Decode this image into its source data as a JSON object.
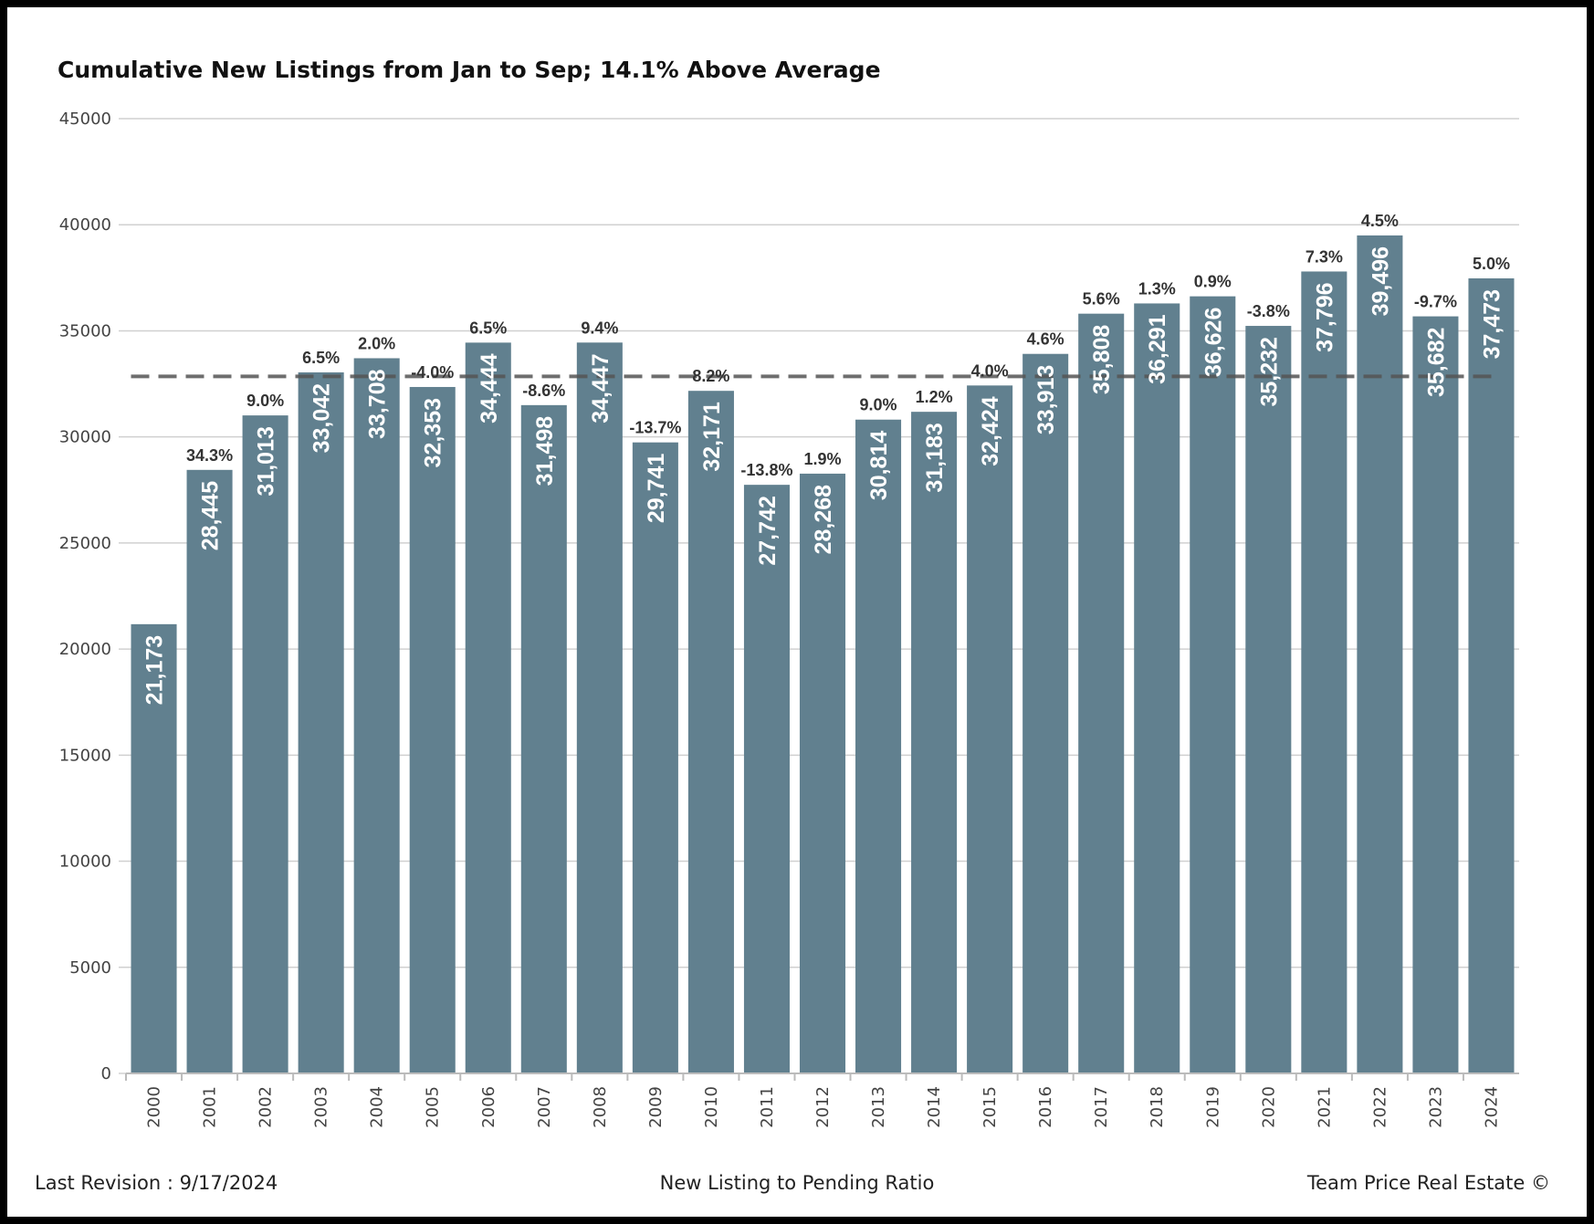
{
  "chart_data": {
    "type": "bar",
    "title": "Cumulative New Listings from Jan to Sep; 14.1% Above Average",
    "xlabel": "",
    "ylabel": "",
    "ylim": [
      0,
      45000
    ],
    "yticks": [
      0,
      5000,
      10000,
      15000,
      20000,
      25000,
      30000,
      35000,
      40000,
      45000
    ],
    "grid": true,
    "categories": [
      "2000",
      "2001",
      "2002",
      "2003",
      "2004",
      "2005",
      "2006",
      "2007",
      "2008",
      "2009",
      "2010",
      "2011",
      "2012",
      "2013",
      "2014",
      "2015",
      "2016",
      "2017",
      "2018",
      "2019",
      "2020",
      "2021",
      "2022",
      "2023",
      "2024"
    ],
    "values": [
      21173,
      28445,
      31013,
      33042,
      33708,
      32353,
      34444,
      31498,
      34447,
      29741,
      32171,
      27742,
      28268,
      30814,
      31183,
      32424,
      33913,
      35808,
      36291,
      36626,
      35232,
      37796,
      39496,
      35682,
      37473
    ],
    "value_labels": [
      "21,173",
      "28,445",
      "31,013",
      "33,042",
      "33,708",
      "32,353",
      "34,444",
      "31,498",
      "34,447",
      "29,741",
      "32,171",
      "27,742",
      "28,268",
      "30,814",
      "31,183",
      "32,424",
      "33,913",
      "35,808",
      "36,291",
      "36,626",
      "35,232",
      "37,796",
      "39,496",
      "35,682",
      "37,473"
    ],
    "change_labels": [
      "",
      "34.3%",
      "9.0%",
      "6.5%",
      "2.0%",
      "-4.0%",
      "6.5%",
      "-8.6%",
      "9.4%",
      "-13.7%",
      "8.2%",
      "-13.8%",
      "1.9%",
      "9.0%",
      "1.2%",
      "4.0%",
      "4.6%",
      "5.6%",
      "1.3%",
      "0.9%",
      "-3.8%",
      "7.3%",
      "4.5%",
      "-9.7%",
      "5.0%"
    ],
    "average_line": 32850,
    "colors": {
      "bar": "#61808f",
      "grid": "#d0d0d0",
      "average_line": "#555555"
    }
  },
  "footer": {
    "left": "Last Revision : 9/17/2024",
    "center": "New Listing to Pending Ratio",
    "right": "Team Price Real Estate ©"
  }
}
